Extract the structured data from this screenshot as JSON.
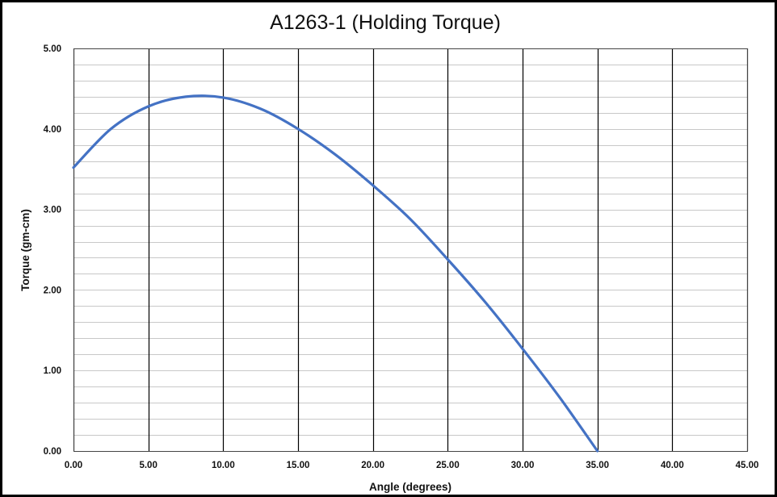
{
  "chart_data": {
    "type": "line",
    "title": "A1263-1 (Holding Torque)",
    "xlabel": "Angle  (degrees)",
    "ylabel": "Torque (gm-cm)",
    "xlim": [
      0,
      45
    ],
    "ylim": [
      0,
      5
    ],
    "x_ticks": [
      "0.00",
      "5.00",
      "10.00",
      "15.00",
      "20.00",
      "25.00",
      "30.00",
      "35.00",
      "40.00",
      "45.00"
    ],
    "y_ticks": [
      "0.00",
      "1.00",
      "2.00",
      "3.00",
      "4.00",
      "5.00"
    ],
    "grid": {
      "vertical_major_step": 5,
      "horizontal_minor_step": 0.2
    },
    "series": [
      {
        "color": "#4472c4",
        "x": [
          0,
          2.5,
          5,
          7.5,
          10,
          12.5,
          15,
          17.5,
          20,
          22.5,
          25,
          27.5,
          30,
          32.5,
          35
        ],
        "y": [
          3.52,
          4.0,
          4.28,
          4.4,
          4.39,
          4.25,
          4.0,
          3.68,
          3.3,
          2.88,
          2.38,
          1.85,
          1.27,
          0.66,
          0.0
        ]
      }
    ]
  }
}
